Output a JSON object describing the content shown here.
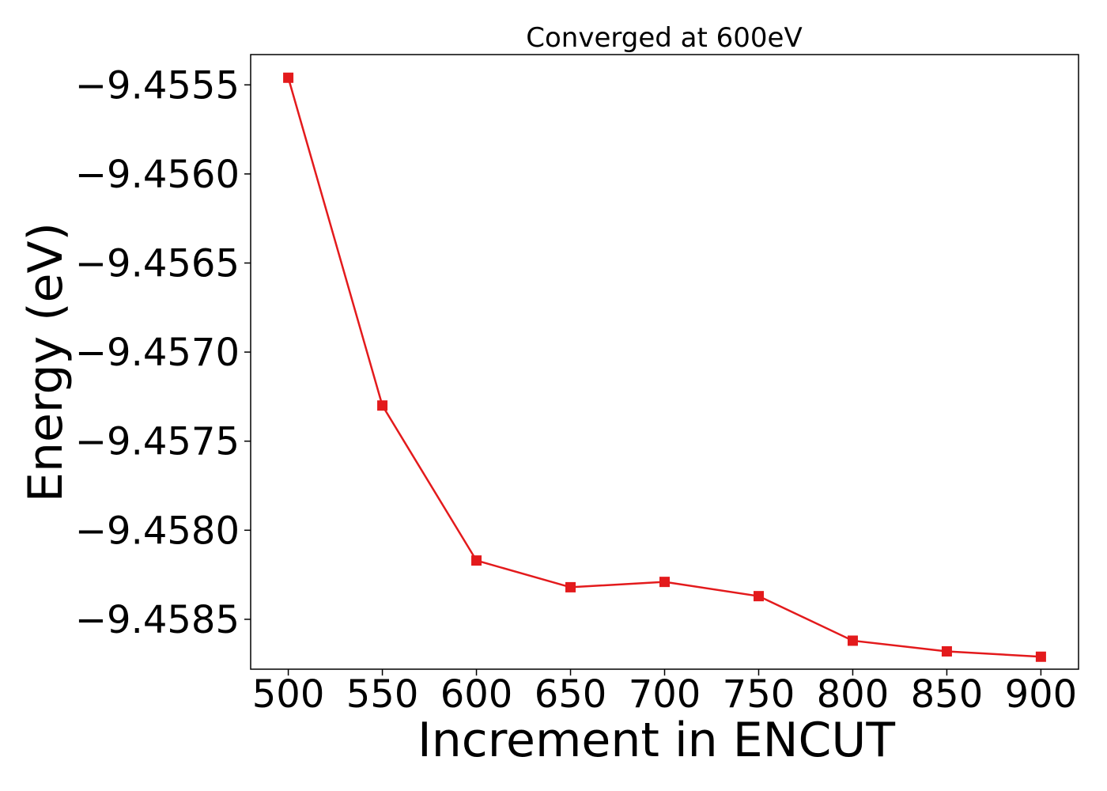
{
  "chart_data": {
    "type": "line",
    "title": "Converged at 600eV",
    "xlabel": "Increment in ENCUT",
    "ylabel": "Energy (eV)",
    "xlim": [
      480,
      920
    ],
    "ylim": [
      -9.45878,
      -9.45533
    ],
    "x_ticks": [
      500,
      550,
      600,
      650,
      700,
      750,
      800,
      850,
      900
    ],
    "x_tick_labels": [
      "500",
      "550",
      "600",
      "650",
      "700",
      "750",
      "800",
      "850",
      "900"
    ],
    "y_ticks": [
      -9.4555,
      -9.456,
      -9.4565,
      -9.457,
      -9.4575,
      -9.458,
      -9.4585
    ],
    "y_tick_labels": [
      "−9.4555",
      "−9.4560",
      "−9.4565",
      "−9.4570",
      "−9.4575",
      "−9.4580",
      "−9.4585"
    ],
    "grid": false,
    "legend": "none",
    "series": [
      {
        "color": "#e31a1c",
        "marker": "square",
        "x": [
          500,
          550,
          600,
          650,
          700,
          750,
          800,
          850,
          900
        ],
        "y": [
          -9.45546,
          -9.4573,
          -9.45817,
          -9.45832,
          -9.45829,
          -9.45837,
          -9.45862,
          -9.45868,
          -9.45871
        ]
      }
    ]
  }
}
